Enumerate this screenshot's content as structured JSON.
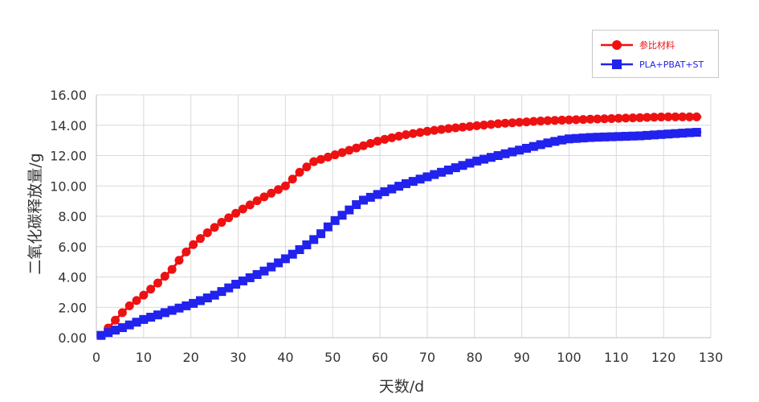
{
  "chart_data": {
    "type": "line",
    "title": "",
    "xlabel": "天数/d",
    "ylabel": "二氧化碳释放量/g",
    "xlim": [
      0,
      130
    ],
    "ylim": [
      0,
      16
    ],
    "xticks": [
      "0",
      "10",
      "20",
      "30",
      "40",
      "50",
      "60",
      "70",
      "80",
      "90",
      "100",
      "110",
      "120",
      "130"
    ],
    "yticks": [
      "0.00",
      "2.00",
      "4.00",
      "6.00",
      "8.00",
      "10.00",
      "12.00",
      "14.00",
      "16.00"
    ],
    "grid": true,
    "legend_position": "top-right",
    "series": [
      {
        "name": "参比材料",
        "color": "#ee1111",
        "marker": "circle",
        "x": [
          1,
          3,
          5,
          7,
          10,
          13,
          16,
          18,
          20,
          23,
          26,
          30,
          35,
          40,
          43,
          46,
          50,
          55,
          60,
          65,
          70,
          75,
          80,
          85,
          90,
          95,
          100,
          105,
          110,
          115,
          120,
          125,
          128
        ],
        "y": [
          0.15,
          0.8,
          1.5,
          2.1,
          2.8,
          3.6,
          4.5,
          5.3,
          6.0,
          6.8,
          7.5,
          8.3,
          9.2,
          10.0,
          10.9,
          11.6,
          12.0,
          12.5,
          13.0,
          13.35,
          13.6,
          13.8,
          13.95,
          14.1,
          14.2,
          14.3,
          14.35,
          14.4,
          14.45,
          14.5,
          14.55,
          14.55,
          14.55
        ]
      },
      {
        "name": "PLA+PBAT+ST",
        "color": "#2222ee",
        "marker": "square",
        "x": [
          1,
          3,
          5,
          10,
          15,
          20,
          25,
          30,
          35,
          40,
          44,
          47,
          50,
          53,
          56,
          60,
          65,
          70,
          75,
          80,
          85,
          90,
          95,
          98,
          100,
          105,
          110,
          115,
          120,
          125,
          128
        ],
        "y": [
          0.15,
          0.4,
          0.6,
          1.2,
          1.7,
          2.2,
          2.8,
          3.6,
          4.3,
          5.2,
          6.0,
          6.7,
          7.6,
          8.3,
          9.0,
          9.5,
          10.1,
          10.6,
          11.1,
          11.6,
          12.0,
          12.4,
          12.8,
          13.0,
          13.1,
          13.2,
          13.25,
          13.3,
          13.4,
          13.5,
          13.55
        ]
      }
    ]
  }
}
